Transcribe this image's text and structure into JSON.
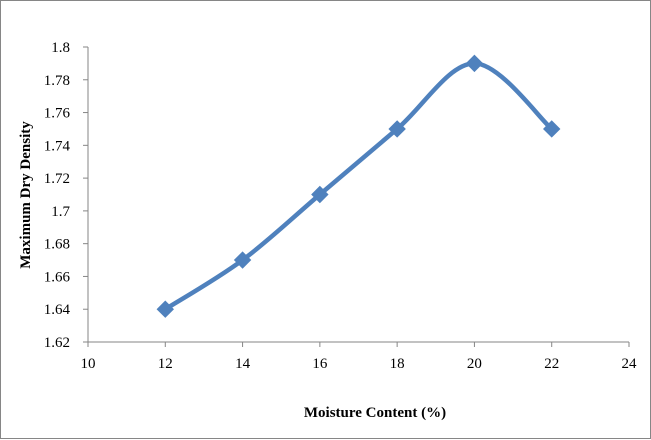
{
  "chart_data": {
    "type": "line",
    "title": "",
    "xlabel": "Moisture Content (%)",
    "ylabel": "Maximum Dry Density",
    "xlim": [
      10,
      24
    ],
    "ylim": [
      1.62,
      1.8
    ],
    "x_ticks": [
      "10",
      "12",
      "14",
      "16",
      "18",
      "20",
      "22",
      "24"
    ],
    "y_ticks": [
      "1.62",
      "1.64",
      "1.66",
      "1.68",
      "1.7",
      "1.72",
      "1.74",
      "1.76",
      "1.78",
      "1.8"
    ],
    "grid": false,
    "legend": "none",
    "smoothed": true,
    "marker": "diamond",
    "series": [
      {
        "color": "#4F81BD",
        "x": [
          12,
          14,
          16,
          18,
          20,
          22
        ],
        "y": [
          1.64,
          1.67,
          1.71,
          1.75,
          1.79,
          1.75
        ]
      }
    ]
  }
}
